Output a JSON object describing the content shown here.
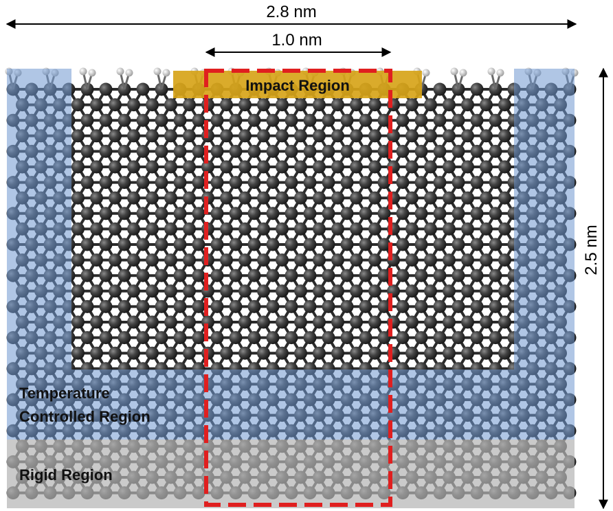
{
  "dimensions": {
    "total_width": "2.8 nm",
    "impact_width": "1.0 nm",
    "height": "2.5 nm"
  },
  "regions": {
    "impact": "Impact Region",
    "temperature_line1": "Temperature",
    "temperature_line2": "Controlled Region",
    "rigid": "Rigid Region"
  },
  "colors": {
    "atom": "#3a3a3a",
    "bond": "#2b2b2b",
    "hydrogen": "#e8e8e8",
    "thermostat_overlay": "#6f98cf",
    "rigid_overlay": "#b3b3b3",
    "impact_fill": "#d7a419",
    "dashed_box": "#e01f1f"
  }
}
